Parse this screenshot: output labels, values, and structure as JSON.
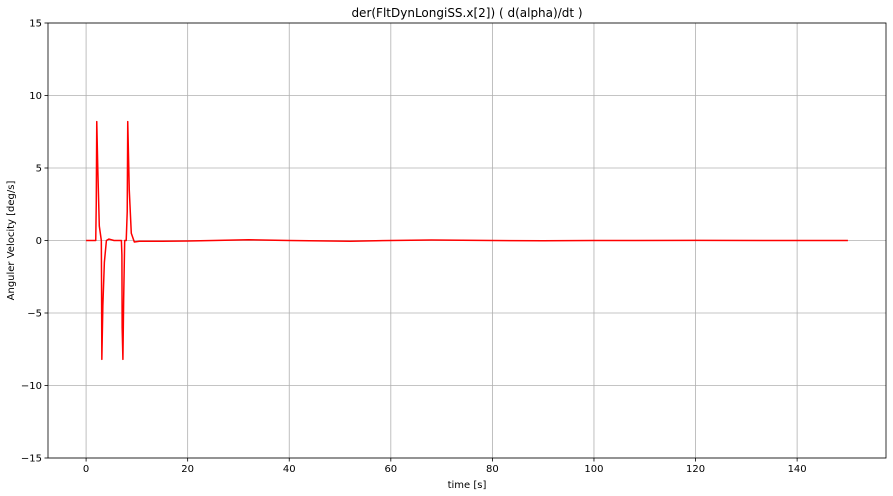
{
  "chart_data": {
    "type": "line",
    "title": "der(FltDynLongiSS.x[2]) ( d(alpha)/dt )",
    "xlabel": "time [s]",
    "ylabel": "Anguler Velocity [deg/s]",
    "xlim": [
      -7.5,
      157.5
    ],
    "ylim": [
      -15,
      15
    ],
    "xticks": [
      0,
      20,
      40,
      60,
      80,
      100,
      120,
      140
    ],
    "yticks": [
      -15,
      -10,
      -5,
      0,
      5,
      10,
      15
    ],
    "xtick_labels": [
      "0",
      "20",
      "40",
      "60",
      "80",
      "100",
      "120",
      "140"
    ],
    "ytick_labels": [
      "−15",
      "−10",
      "−5",
      "0",
      "5",
      "10",
      "15"
    ],
    "grid": true,
    "series": [
      {
        "color": "#ff0000",
        "x": [
          0,
          1.9,
          2.0,
          2.1,
          2.3,
          2.6,
          3.0,
          3.05,
          3.1,
          3.3,
          3.6,
          4.0,
          4.5,
          5.5,
          6.8,
          6.95,
          7.05,
          7.1,
          7.25,
          7.4,
          7.6,
          7.9,
          8.1,
          8.2,
          8.5,
          8.9,
          9.5,
          10.5,
          15,
          20,
          25,
          32,
          40,
          52,
          60,
          68,
          80,
          90,
          100,
          120,
          140,
          150
        ],
        "y": [
          0,
          0,
          2.5,
          8.2,
          5.0,
          1.0,
          0,
          -3.5,
          -8.2,
          -4.5,
          -1.5,
          0,
          0.1,
          0,
          0,
          0,
          -1.0,
          -6.0,
          -8.2,
          -4.0,
          0,
          0,
          2.0,
          8.2,
          3.5,
          0.5,
          -0.1,
          -0.05,
          -0.05,
          -0.03,
          0,
          0.05,
          0,
          -0.05,
          0,
          0.03,
          0,
          -0.02,
          0,
          0.01,
          0,
          0
        ]
      }
    ]
  }
}
